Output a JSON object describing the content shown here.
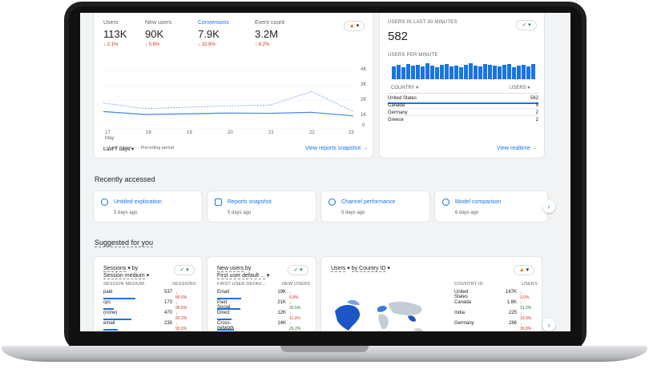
{
  "overview": {
    "metrics": [
      {
        "label": "Users",
        "value": "113K",
        "change": "2.1%",
        "active": false
      },
      {
        "label": "New users",
        "value": "90K",
        "change": "5.6%",
        "active": false
      },
      {
        "label": "Conversions",
        "value": "7.9K",
        "change": "32.9%",
        "active": true
      },
      {
        "label": "Event count",
        "value": "3.2M",
        "change": "8.2%",
        "active": false
      }
    ],
    "y_ticks": [
      "4K",
      "3K",
      "2K",
      "1K",
      "0"
    ],
    "x_ticks": [
      "17",
      "18",
      "19",
      "20",
      "21",
      "22",
      "23"
    ],
    "x_month": "May",
    "legend_current": "Last 7 days",
    "legend_previous": "Preceding period",
    "range_label": "Last 7 days",
    "link": "View reports snapshot"
  },
  "chart_data": {
    "type": "line",
    "x": [
      "17",
      "18",
      "19",
      "20",
      "21",
      "22",
      "23"
    ],
    "ylim": [
      0,
      4000
    ],
    "series": [
      {
        "name": "Last 7 days",
        "values": [
          1200,
          1000,
          1050,
          1100,
          1080,
          1150,
          900
        ]
      },
      {
        "name": "Preceding period",
        "values": [
          1800,
          1400,
          1500,
          1600,
          1650,
          2600,
          1200
        ]
      }
    ]
  },
  "realtime": {
    "header": "USERS IN LAST 30 MINUTES",
    "value": "582",
    "per_minute_label": "USERS PER MINUTE",
    "per_minute": [
      16,
      18,
      15,
      19,
      17,
      18,
      16,
      20,
      17,
      15,
      18,
      19,
      16,
      17,
      15,
      18,
      20,
      17,
      16,
      19,
      18,
      17,
      16,
      18,
      19,
      15,
      17,
      18,
      16,
      19
    ],
    "col_country": "COUNTRY",
    "col_users": "USERS",
    "rows": [
      {
        "country": "United States",
        "users": "562"
      },
      {
        "country": "Canada",
        "users": "5"
      },
      {
        "country": "Germany",
        "users": "2"
      },
      {
        "country": "Greece",
        "users": "2"
      }
    ],
    "link": "View realtime"
  },
  "recent": {
    "title": "Recently accessed",
    "items": [
      {
        "title": "Untitled exploration",
        "sub": "5 days ago"
      },
      {
        "title": "Reports snapshot",
        "sub": "5 days ago"
      },
      {
        "title": "Channel performance",
        "sub": "5 days ago"
      },
      {
        "title": "Model comparison",
        "sub": "6 days ago"
      }
    ]
  },
  "suggested": {
    "title": "Suggested for you",
    "sessions": {
      "title_line1": "Sessions",
      "title_by": "by",
      "title_line2": "Session medium",
      "col_left": "SESSION MEDIUM",
      "col_right": "SESSIONS",
      "rows": [
        {
          "name": "paid",
          "value": "537",
          "change": "85.6%",
          "bar": 1.0
        },
        {
          "name": "cpc",
          "value": "173",
          "change": "95.6%",
          "bar": 0.32
        },
        {
          "name": "(none)",
          "value": "470",
          "change": "82.2%",
          "bar": 0.87
        },
        {
          "name": "email",
          "value": "239",
          "change": "90.0%",
          "bar": 0.45
        }
      ]
    },
    "new_users": {
      "title_line1": "New users",
      "title_by": "by",
      "title_line2": "First user default ...",
      "col_left": "FIRST USER DEFAU...",
      "col_right": "NEW USERS",
      "rows": [
        {
          "name": "Email",
          "value": "19K",
          "change": "6.8%",
          "up": false,
          "bar": 1.0
        },
        {
          "name": "Paid Social",
          "value": "21K",
          "change": "32.5%",
          "up": true,
          "bar": 0.95
        },
        {
          "name": "Direct",
          "value": "12K",
          "change": "11.2%",
          "up": false,
          "bar": 0.6
        },
        {
          "name": "Cross-network",
          "value": "14K",
          "change": "26.2%",
          "up": true,
          "bar": 0.7
        }
      ]
    },
    "country": {
      "title_metric": "Users",
      "title_by": "by Country ID",
      "col_left": "COUNTRY ID",
      "col_right": "USERS",
      "rows": [
        {
          "name": "United States",
          "value": "167K",
          "change": "3.0%",
          "up": false
        },
        {
          "name": "Canada",
          "value": "1.8K",
          "change": "31.2%",
          "up": true
        },
        {
          "name": "India",
          "value": "225",
          "change": "19.9%",
          "up": false
        },
        {
          "name": "Germany",
          "value": "286",
          "change": "36.8%",
          "up": false
        }
      ]
    }
  }
}
